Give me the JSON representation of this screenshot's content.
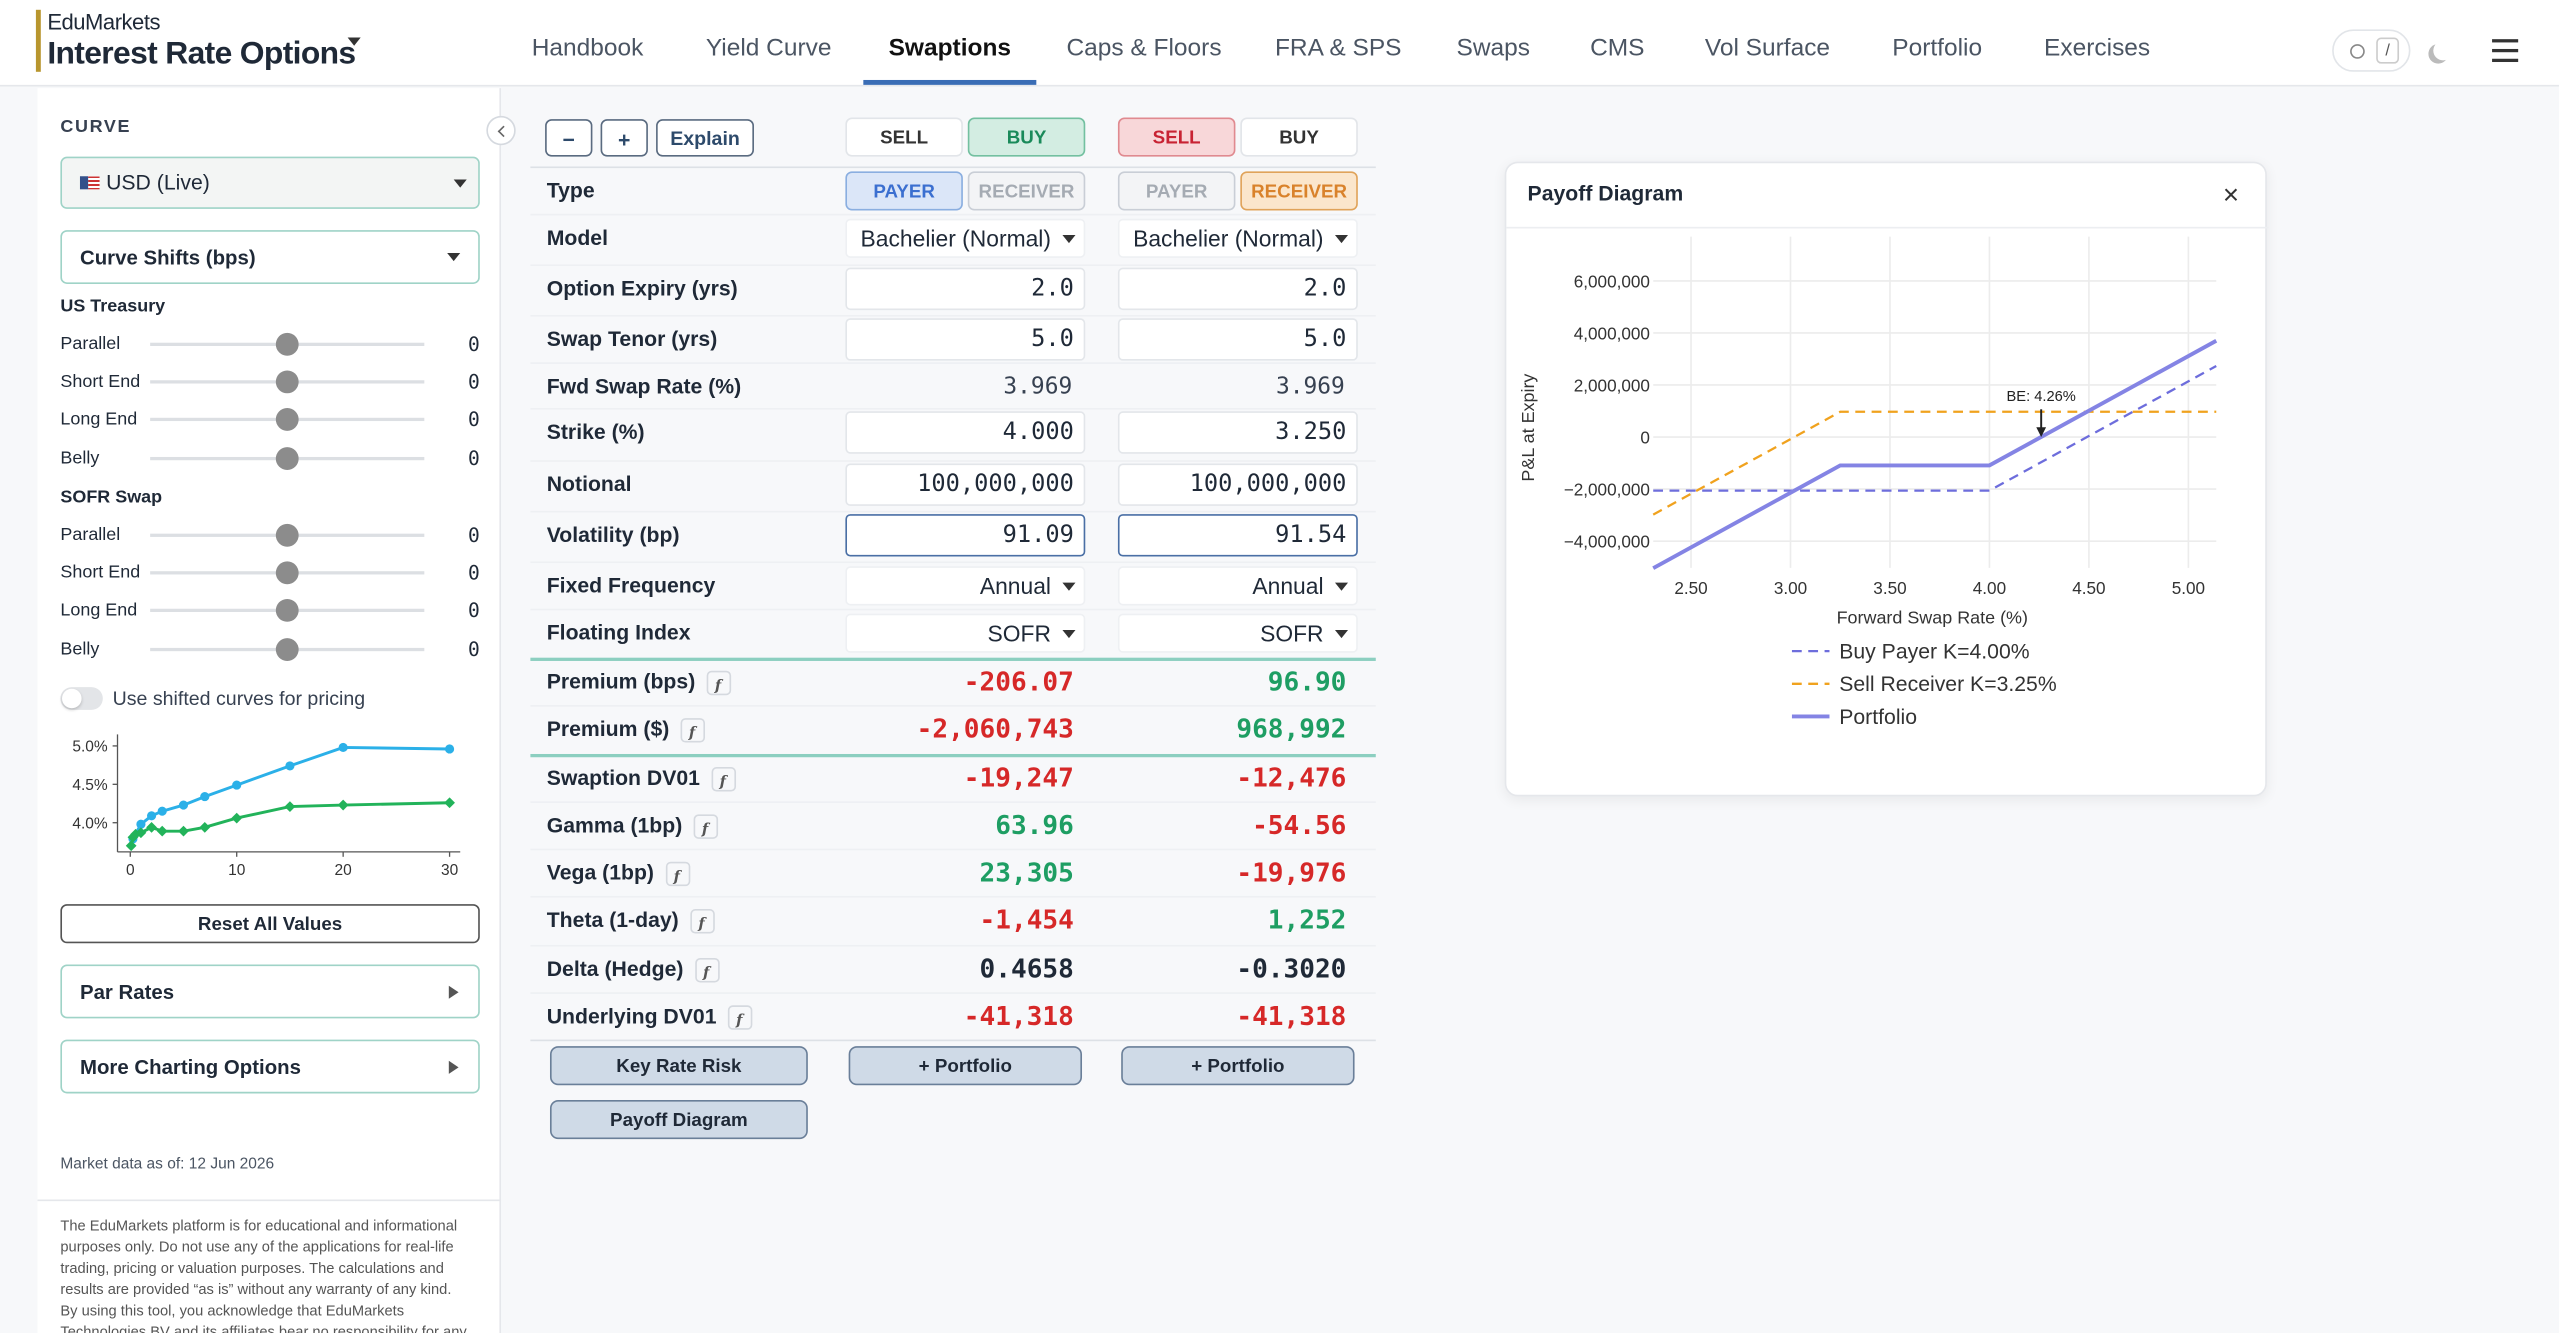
{
  "header": {
    "brand_top": "EduMarkets",
    "brand": "Interest Rate Options",
    "nav": [
      "Handbook",
      "Yield Curve",
      "Swaptions",
      "Caps & Floors",
      "FRA & SPS",
      "Swaps",
      "CMS",
      "Vol Surface",
      "Portfolio",
      "Exercises"
    ],
    "active_nav": "Swaptions",
    "search_key": "/"
  },
  "sidebar": {
    "curve_heading": "CURVE",
    "curve": "USD (Live)",
    "shifts_heading": "Curve Shifts (bps)",
    "groups": [
      {
        "name": "US Treasury",
        "sliders": [
          {
            "label": "Parallel",
            "value": 0
          },
          {
            "label": "Short End",
            "value": 0
          },
          {
            "label": "Long End",
            "value": 0
          },
          {
            "label": "Belly",
            "value": 0
          }
        ]
      },
      {
        "name": "SOFR Swap",
        "sliders": [
          {
            "label": "Parallel",
            "value": 0
          },
          {
            "label": "Short End",
            "value": 0
          },
          {
            "label": "Long End",
            "value": 0
          },
          {
            "label": "Belly",
            "value": 0
          }
        ]
      }
    ],
    "shift_toggle": "Use shifted curves for pricing",
    "shift_toggle_on": false,
    "curve_chart": {
      "type": "line",
      "xlim": [
        -1.2,
        31
      ],
      "ylim": [
        3.62,
        5.15
      ],
      "xticks": [
        0,
        10,
        20,
        30
      ],
      "yticks": [
        {
          "value": 4.0,
          "label": "4.0%"
        },
        {
          "value": 4.5,
          "label": "4.5%"
        },
        {
          "value": 5.0,
          "label": "5.0%"
        }
      ],
      "series": [
        {
          "color": "#2bb0e8",
          "marker": "circle",
          "x": [
            0.25,
            1,
            2,
            3,
            5,
            7,
            10,
            15,
            20,
            30
          ],
          "values": [
            3.79,
            3.98,
            4.09,
            4.15,
            4.23,
            4.34,
            4.49,
            4.74,
            4.98,
            4.96
          ]
        },
        {
          "color": "#22b35a",
          "marker": "diamond",
          "x": [
            0.083,
            0.25,
            0.5,
            1,
            2,
            3,
            5,
            7,
            10,
            15,
            20,
            30
          ],
          "values": [
            3.7,
            3.81,
            3.85,
            3.87,
            3.94,
            3.89,
            3.89,
            3.94,
            4.06,
            4.21,
            4.23,
            4.26
          ]
        }
      ]
    },
    "reset": "Reset All Values",
    "panels": [
      "Par Rates",
      "More Charting Options"
    ],
    "market_date": "Market data as of: 12 Jun 2026",
    "disclaimer": "The EduMarkets platform is for educational and informational purposes only. Do not use any of the applications for real-life trading, pricing or valuation purposes. The calculations and results are provided “as is” without any warranty of any kind. By using this tool, you acknowledge that EduMarkets Technologies BV and its affiliates bear no responsibility for any"
  },
  "pricer": {
    "controls": [
      "−",
      "+",
      "Explain"
    ],
    "side_options": [
      "SELL",
      "BUY"
    ],
    "type_options": [
      "PAYER",
      "RECEIVER"
    ],
    "type_label": "Type",
    "legs": [
      {
        "side": "BUY",
        "type": "PAYER"
      },
      {
        "side": "SELL",
        "type": "RECEIVER"
      }
    ],
    "inputs": [
      {
        "label": "Model",
        "kind": "select",
        "values": [
          "Bachelier (Normal)",
          "Bachelier (Normal)"
        ]
      },
      {
        "label": "Option Expiry (yrs)",
        "kind": "input",
        "values": [
          "2.0",
          "2.0"
        ]
      },
      {
        "label": "Swap Tenor (yrs)",
        "kind": "input",
        "values": [
          "5.0",
          "5.0"
        ]
      },
      {
        "label": "Fwd Swap Rate (%)",
        "kind": "text",
        "values": [
          "3.969",
          "3.969"
        ]
      },
      {
        "label": "Strike (%)",
        "kind": "input",
        "values": [
          "4.000",
          "3.250"
        ]
      },
      {
        "label": "Notional",
        "kind": "input",
        "values": [
          "100,000,000",
          "100,000,000"
        ]
      },
      {
        "label": "Volatility (bp)",
        "kind": "input",
        "highlight": true,
        "values": [
          "91.09",
          "91.54"
        ]
      },
      {
        "label": "Fixed Frequency",
        "kind": "select",
        "values": [
          "Annual",
          "Annual"
        ]
      },
      {
        "label": "Floating Index",
        "kind": "select",
        "values": [
          "SOFR",
          "SOFR"
        ]
      }
    ],
    "premiums": [
      {
        "label": "Premium (bps)",
        "values": [
          "-206.07",
          "96.90"
        ]
      },
      {
        "label": "Premium ($)",
        "values": [
          "-2,060,743",
          "968,992"
        ]
      }
    ],
    "greeks": [
      {
        "label": "Swaption DV01",
        "values": [
          "-19,247",
          "-12,476"
        ]
      },
      {
        "label": "Gamma (1bp)",
        "values": [
          "63.96",
          "-54.56"
        ]
      },
      {
        "label": "Vega (1bp)",
        "values": [
          "23,305",
          "-19,976"
        ]
      },
      {
        "label": "Theta (1-day)",
        "values": [
          "-1,454",
          "1,252"
        ]
      },
      {
        "label": "Delta (Hedge)",
        "plain": true,
        "values": [
          "0.4658",
          "-0.3020"
        ]
      },
      {
        "label": "Underlying DV01",
        "values": [
          "-41,318",
          "-41,318"
        ]
      }
    ],
    "actions": [
      "+ Portfolio",
      "+ Portfolio"
    ],
    "tools": [
      "Key Rate Risk",
      "Payoff Diagram"
    ]
  },
  "payoff": {
    "type": "line",
    "title": "Payoff Diagram",
    "close": "×",
    "y_label": "P&L at Expiry",
    "x_label": "Forward Swap Rate (%)",
    "x": [
      2.31,
      3.25,
      4.0,
      5.14
    ],
    "xlim": [
      2.31,
      5.14
    ],
    "ylim": [
      -5030000,
      7700000
    ],
    "xticks": [
      {
        "value": 2.5,
        "label": "2.50"
      },
      {
        "value": 3.0,
        "label": "3.00"
      },
      {
        "value": 3.5,
        "label": "3.50"
      },
      {
        "value": 4.0,
        "label": "4.00"
      },
      {
        "value": 4.5,
        "label": "4.50"
      },
      {
        "value": 5.0,
        "label": "5.00"
      }
    ],
    "yticks": [
      {
        "value": -4000000,
        "label": "−4,000,000"
      },
      {
        "value": -2000000,
        "label": "−2,000,000"
      },
      0,
      {
        "value": 2000000,
        "label": "2,000,000"
      },
      {
        "value": 4000000,
        "label": "4,000,000"
      },
      {
        "value": 6000000,
        "label": "6,000,000"
      }
    ],
    "grid": true,
    "series": [
      {
        "name": "Buy Payer K=4.00%",
        "color": "#6d6ddc",
        "dash": true,
        "values": [
          -2060000,
          -2060000,
          -2060000,
          2730000
        ]
      },
      {
        "name": "Sell Receiver K=3.25%",
        "color": "#f0a21e",
        "dash": true,
        "values": [
          -2980000,
          970000,
          970000,
          970000
        ]
      },
      {
        "name": "Portfolio",
        "color": "#8484e4",
        "dash": false,
        "values": [
          -5040000,
          -1090000,
          -1090000,
          3700000
        ]
      }
    ],
    "annotation": {
      "label": "BE: 4.26%",
      "x": 4.26,
      "y": 0
    }
  }
}
